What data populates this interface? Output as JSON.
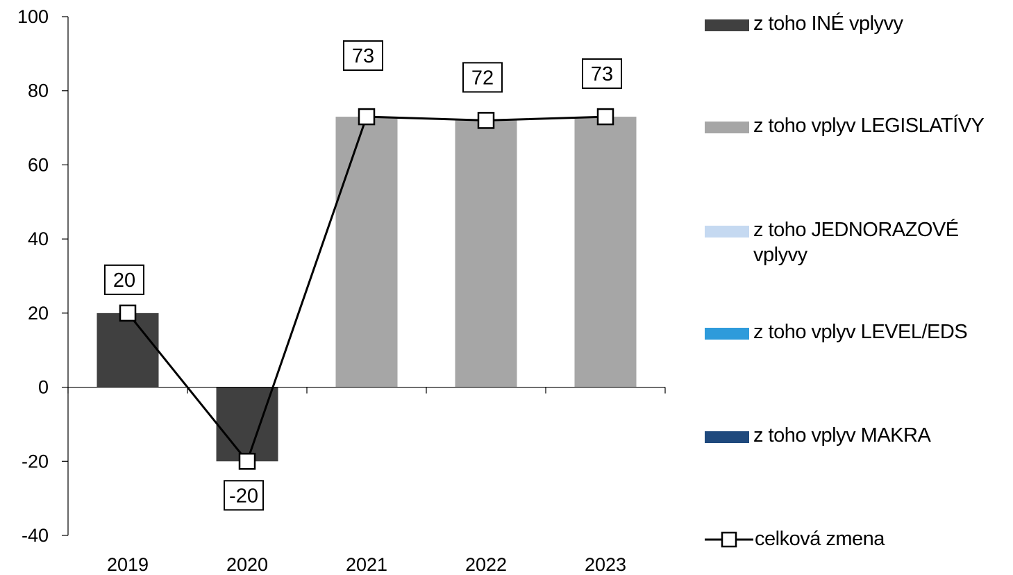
{
  "chart_data": {
    "type": "bar",
    "categories": [
      "2019",
      "2020",
      "2021",
      "2022",
      "2023"
    ],
    "ylim": [
      -40,
      100
    ],
    "yticks": [
      100,
      80,
      60,
      40,
      20,
      0,
      -20,
      -40
    ],
    "series": [
      {
        "name": "z toho INÉ vplyvy",
        "kind": "bar",
        "color": "#404040",
        "values": [
          20,
          -20,
          0,
          0,
          0
        ]
      },
      {
        "name": "z toho vplyv LEGISLATÍVY",
        "kind": "bar",
        "color": "#a6a6a6",
        "values": [
          0,
          0,
          73,
          72,
          73
        ]
      },
      {
        "name": "z toho JEDNORAZOVÉ vplyvy",
        "kind": "bar",
        "color": "#c5d9f1",
        "values": [
          0,
          0,
          0,
          0,
          0
        ]
      },
      {
        "name": "z toho vplyv LEVEL/EDS",
        "kind": "bar",
        "color": "#2e9bdb",
        "values": [
          0,
          0,
          0,
          0,
          0
        ]
      },
      {
        "name": "z toho vplyv MAKRA",
        "kind": "bar",
        "color": "#1f497d",
        "values": [
          0,
          0,
          0,
          0,
          0
        ]
      },
      {
        "name": "celková zmena",
        "kind": "line",
        "color": "#000000",
        "values": [
          20,
          -20,
          73,
          72,
          73
        ]
      }
    ],
    "data_labels": [
      "20",
      "-20",
      "73",
      "72",
      "73"
    ],
    "legend_position": "right",
    "grid": false
  },
  "legend": {
    "items": [
      {
        "label": "z toho INÉ vplyvy"
      },
      {
        "label": "z toho vplyv LEGISLATÍVY"
      },
      {
        "label": "z toho JEDNORAZOVÉ vplyvy"
      },
      {
        "label": "z toho vplyv LEVEL/EDS"
      },
      {
        "label": "z toho vplyv MAKRA"
      },
      {
        "label": "celková zmena"
      }
    ]
  }
}
